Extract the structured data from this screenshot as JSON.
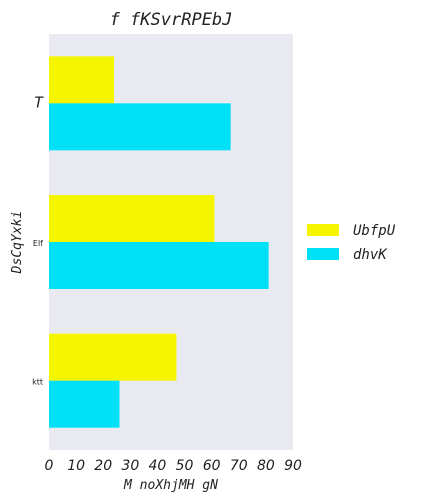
{
  "chart_data": {
    "type": "bar",
    "orientation": "horizontal",
    "title": "f  fKSvrRPEbJ",
    "xlabel": "M noXhjMH gN",
    "ylabel": "DsCqYxki",
    "categories": [
      "T",
      "Elf",
      "ktt"
    ],
    "series": [
      {
        "name": "UbfpU",
        "color": "#f5f500",
        "values": [
          24,
          61,
          47
        ]
      },
      {
        "name": "dhvK",
        "color": "#00e1f7",
        "values": [
          67,
          81,
          26
        ]
      }
    ],
    "xlim": [
      0,
      90
    ],
    "xticks": [
      0,
      10,
      20,
      30,
      40,
      50,
      60,
      70,
      80,
      90
    ],
    "grid": false,
    "legend_position": "right",
    "background": "#e9e9f2"
  }
}
